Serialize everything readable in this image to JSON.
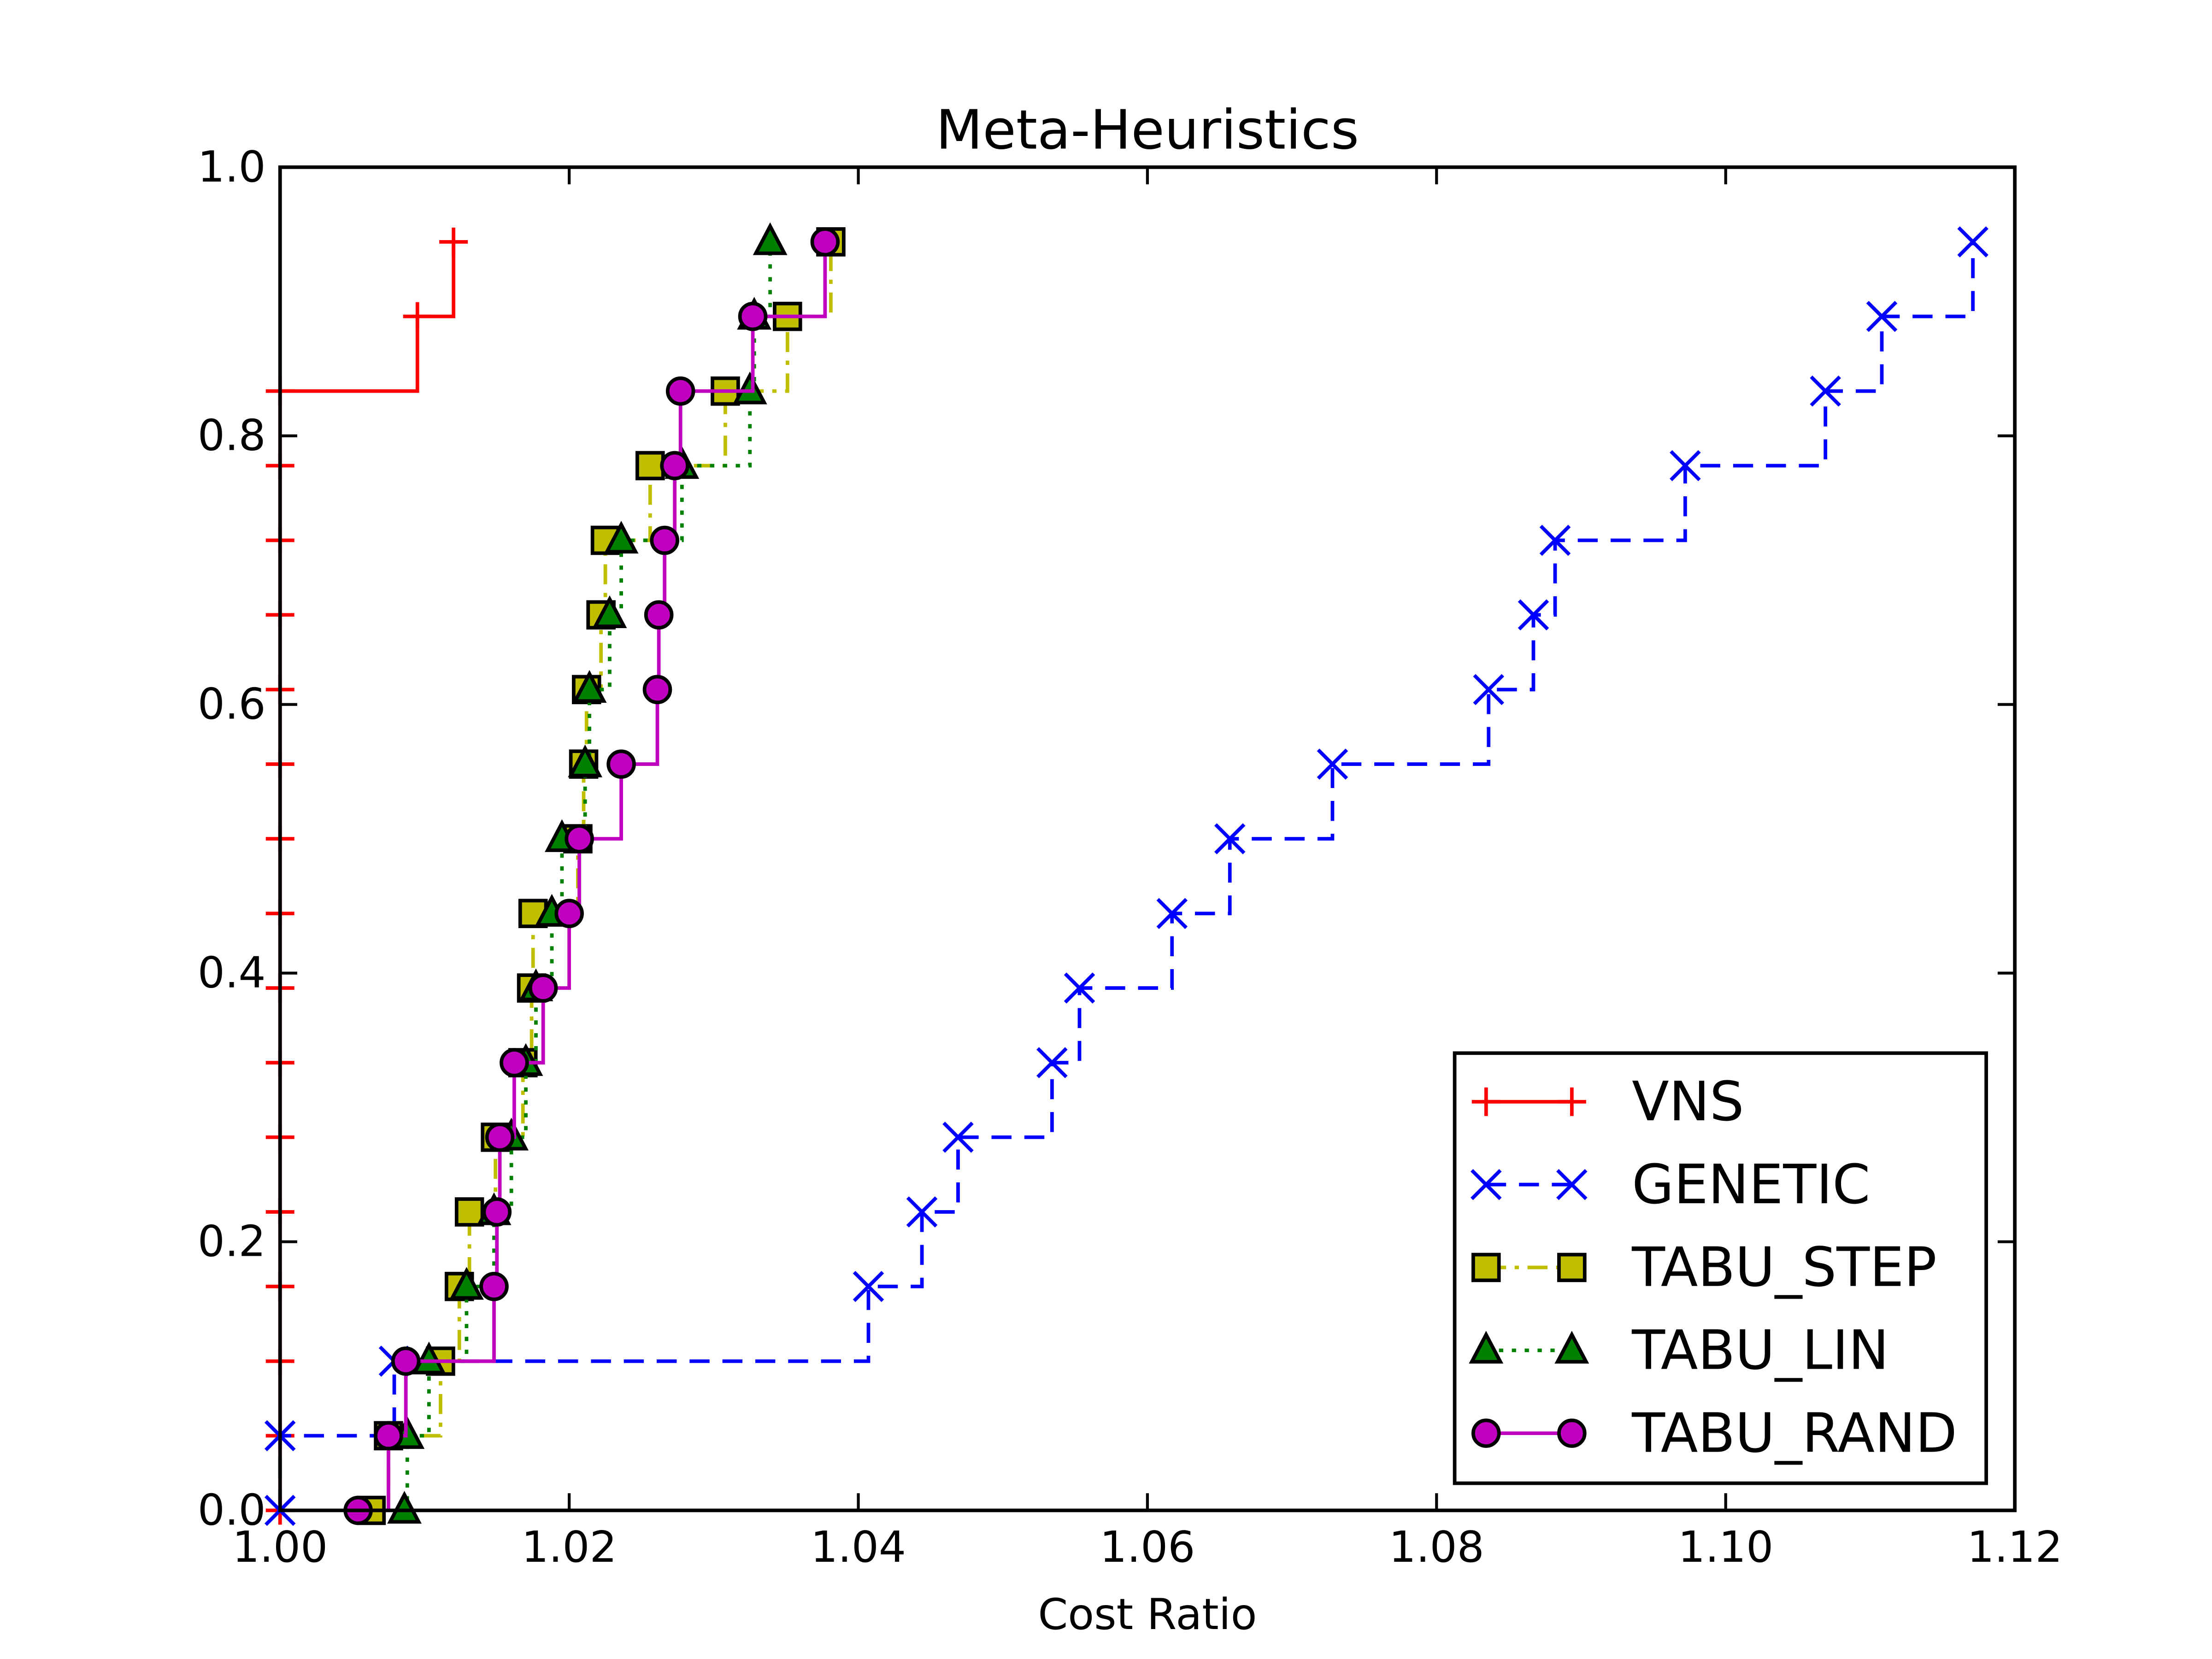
{
  "chart_data": {
    "type": "step",
    "drawstyle": "steps-post",
    "title": "Meta-Heuristics",
    "x_label": "Cost Ratio",
    "xlim": [
      1.0,
      1.12
    ],
    "ylim": [
      0.0,
      1.0
    ],
    "xticks": [
      {
        "value": 1.0,
        "label": "1.00"
      },
      {
        "value": 1.02,
        "label": "1.02"
      },
      {
        "value": 1.04,
        "label": "1.04"
      },
      {
        "value": 1.06,
        "label": "1.06"
      },
      {
        "value": 1.08,
        "label": "1.08"
      },
      {
        "value": 1.1,
        "label": "1.10"
      },
      {
        "value": 1.12,
        "label": "1.12"
      }
    ],
    "yticks": [
      {
        "value": 0.0,
        "label": "0.0"
      },
      0.2,
      0.4,
      0.6,
      0.8,
      {
        "value": 1.0,
        "label": "1.0"
      }
    ],
    "grid": false,
    "legend_loc": "lower right",
    "series": [
      {
        "name": "VNS",
        "color": "#ff0000",
        "linestyle": "solid",
        "marker": "plus",
        "x": [
          1.0,
          1.0,
          1.0,
          1.0,
          1.0,
          1.0,
          1.0,
          1.0,
          1.0,
          1.0,
          1.0,
          1.0,
          1.0,
          1.0,
          1.0,
          1.0,
          1.0095,
          1.012
        ],
        "values": [
          0.0,
          0.0556,
          0.1111,
          0.1667,
          0.2222,
          0.2778,
          0.3333,
          0.3889,
          0.4444,
          0.5,
          0.5556,
          0.6111,
          0.6667,
          0.7222,
          0.7778,
          0.8333,
          0.8889,
          0.9444
        ]
      },
      {
        "name": "GENETIC",
        "color": "#0000ff",
        "linestyle": "dashed",
        "marker": "x",
        "x": [
          1.0,
          1.0,
          1.0079,
          1.0407,
          1.0444,
          1.0469,
          1.0534,
          1.0553,
          1.0617,
          1.0657,
          1.0728,
          1.0836,
          1.0867,
          1.0882,
          1.0972,
          1.1069,
          1.1108,
          1.1171
        ],
        "values": [
          0.0,
          0.0556,
          0.1111,
          0.1667,
          0.2222,
          0.2778,
          0.3333,
          0.3889,
          0.4444,
          0.5,
          0.5556,
          0.6111,
          0.6667,
          0.7222,
          0.7778,
          0.8333,
          0.8889,
          0.9444
        ]
      },
      {
        "name": "TABU_STEP",
        "color": "#bfbf00",
        "linestyle": "dashdot",
        "marker": "square",
        "x": [
          1.0063,
          1.0075,
          1.0111,
          1.0124,
          1.0131,
          1.0149,
          1.0168,
          1.0174,
          1.0175,
          1.0206,
          1.021,
          1.0212,
          1.0222,
          1.0225,
          1.0256,
          1.0308,
          1.0351,
          1.0381
        ],
        "values": [
          0.0,
          0.0556,
          0.1111,
          0.1667,
          0.2222,
          0.2778,
          0.3333,
          0.3889,
          0.4444,
          0.5,
          0.5556,
          0.6111,
          0.6667,
          0.7222,
          0.7778,
          0.8333,
          0.8889,
          0.9444
        ]
      },
      {
        "name": "TABU_LIN",
        "color": "#008000",
        "linestyle": "dotted",
        "marker": "triangle",
        "x": [
          1.0086,
          1.0088,
          1.0103,
          1.0129,
          1.0148,
          1.016,
          1.017,
          1.0177,
          1.0188,
          1.0195,
          1.0211,
          1.0214,
          1.0228,
          1.0236,
          1.0278,
          1.0325,
          1.0328,
          1.0339
        ],
        "values": [
          0.0,
          0.0556,
          0.1111,
          0.1667,
          0.2222,
          0.2778,
          0.3333,
          0.3889,
          0.4444,
          0.5,
          0.5556,
          0.6111,
          0.6667,
          0.7222,
          0.7778,
          0.8333,
          0.8889,
          0.9444
        ]
      },
      {
        "name": "TABU_RAND",
        "color": "#bf00bf",
        "linestyle": "solid",
        "marker": "circle",
        "x": [
          1.0054,
          1.0075,
          1.0087,
          1.0148,
          1.015,
          1.0152,
          1.0162,
          1.0182,
          1.02,
          1.0207,
          1.0236,
          1.0261,
          1.0262,
          1.0266,
          1.0273,
          1.0277,
          1.0327,
          1.0377
        ],
        "values": [
          0.0,
          0.0556,
          0.1111,
          0.1667,
          0.2222,
          0.2778,
          0.3333,
          0.3889,
          0.4444,
          0.5,
          0.5556,
          0.6111,
          0.6667,
          0.7222,
          0.7778,
          0.8333,
          0.8889,
          0.9444
        ]
      }
    ]
  }
}
